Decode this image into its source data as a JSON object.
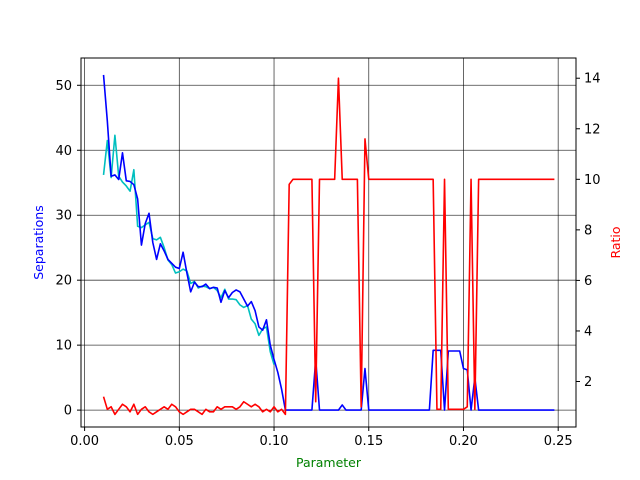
{
  "chart_data": {
    "type": "line",
    "title": "",
    "xlabel": "Parameter",
    "ylabel_left": "Separations",
    "ylabel_right": "Ratio",
    "colors": {
      "xlabel": "#008000",
      "ylabel_left": "#0000ff",
      "ylabel_right": "#ff0000",
      "grid": "#000000"
    },
    "grid": true,
    "xlim": [
      -0.0019,
      0.2594
    ],
    "ylim_left": [
      -2.6,
      54.2
    ],
    "ylim_right": [
      0.2,
      14.8
    ],
    "x_ticks": [
      0.0,
      0.05,
      0.1,
      0.15,
      0.2,
      0.25
    ],
    "x_tick_labels": [
      "0.00",
      "0.05",
      "0.10",
      "0.15",
      "0.20",
      "0.25"
    ],
    "y_left_ticks": [
      0,
      10,
      20,
      30,
      40,
      50
    ],
    "y_left_tick_labels": [
      "0",
      "10",
      "20",
      "30",
      "40",
      "50"
    ],
    "y_right_ticks": [
      2,
      4,
      6,
      8,
      10,
      12,
      14
    ],
    "y_right_tick_labels": [
      "2",
      "4",
      "6",
      "8",
      "10",
      "12",
      "14"
    ],
    "series": [
      {
        "axis": "left",
        "color": "#00bfbf",
        "x": [
          0.01,
          0.012,
          0.014,
          0.016,
          0.018,
          0.02,
          0.022,
          0.024,
          0.026,
          0.028,
          0.03,
          0.032,
          0.034,
          0.036,
          0.038,
          0.04,
          0.042,
          0.044,
          0.046,
          0.048,
          0.05,
          0.052,
          0.054,
          0.056,
          0.058,
          0.06,
          0.062,
          0.064,
          0.066,
          0.068,
          0.07,
          0.072,
          0.074,
          0.076,
          0.078,
          0.08,
          0.082,
          0.084,
          0.086,
          0.088,
          0.09,
          0.092,
          0.094,
          0.096,
          0.098,
          0.1
        ],
        "y": [
          36.2,
          41.5,
          35.8,
          42.3,
          36.0,
          35.1,
          34.5,
          33.7,
          37.0,
          28.3,
          28.1,
          28.5,
          28.9,
          26.4,
          26.2,
          26.6,
          25.0,
          23.1,
          22.4,
          21.1,
          21.3,
          21.7,
          21.4,
          19.5,
          19.8,
          18.8,
          19.1,
          19.0,
          18.7,
          18.9,
          18.4,
          17.3,
          18.6,
          17.1,
          17.1,
          17.0,
          16.2,
          15.8,
          16.1,
          14.0,
          13.3,
          11.5,
          12.5,
          12.8,
          9.0,
          7.0
        ]
      },
      {
        "axis": "left",
        "color": "#0000ff",
        "x": [
          0.01,
          0.012,
          0.014,
          0.016,
          0.018,
          0.02,
          0.022,
          0.024,
          0.026,
          0.028,
          0.03,
          0.032,
          0.034,
          0.036,
          0.038,
          0.04,
          0.042,
          0.044,
          0.046,
          0.048,
          0.05,
          0.052,
          0.054,
          0.056,
          0.058,
          0.06,
          0.062,
          0.064,
          0.066,
          0.068,
          0.07,
          0.072,
          0.074,
          0.076,
          0.078,
          0.08,
          0.082,
          0.084,
          0.086,
          0.088,
          0.09,
          0.092,
          0.094,
          0.096,
          0.098,
          0.1,
          0.102,
          0.104,
          0.106,
          0.108,
          0.11,
          0.112,
          0.114,
          0.116,
          0.118,
          0.12,
          0.122,
          0.124,
          0.126,
          0.128,
          0.13,
          0.132,
          0.134,
          0.136,
          0.138,
          0.14,
          0.142,
          0.144,
          0.146,
          0.148,
          0.15,
          0.152,
          0.154,
          0.156,
          0.158,
          0.16,
          0.162,
          0.164,
          0.166,
          0.168,
          0.17,
          0.172,
          0.174,
          0.176,
          0.178,
          0.18,
          0.182,
          0.184,
          0.186,
          0.188,
          0.19,
          0.192,
          0.194,
          0.196,
          0.198,
          0.2,
          0.202,
          0.204,
          0.206,
          0.208,
          0.21,
          0.212,
          0.214,
          0.216,
          0.218,
          0.22,
          0.222,
          0.224,
          0.226,
          0.228,
          0.23,
          0.232,
          0.234,
          0.236,
          0.238,
          0.24,
          0.242,
          0.244,
          0.246,
          0.248
        ],
        "y": [
          51.6,
          44.5,
          36.0,
          36.2,
          35.5,
          39.6,
          35.3,
          35.2,
          34.7,
          32.5,
          25.4,
          28.7,
          30.3,
          25.8,
          23.2,
          25.6,
          24.5,
          23.2,
          22.6,
          22.0,
          21.8,
          24.3,
          21.1,
          18.2,
          19.7,
          19.0,
          19.0,
          19.4,
          18.7,
          18.9,
          18.8,
          16.6,
          18.4,
          17.3,
          18.1,
          18.5,
          18.2,
          17.1,
          16.0,
          16.7,
          15.3,
          12.8,
          12.3,
          13.9,
          10.0,
          7.8,
          5.8,
          3.2,
          0.0,
          0.0,
          0.0,
          0.0,
          0.0,
          0.0,
          0.0,
          0.0,
          7.8,
          0.0,
          0.0,
          0.0,
          0.0,
          0.0,
          0.0,
          0.8,
          0.0,
          0.0,
          0.0,
          0.0,
          0.0,
          6.4,
          0.0,
          0.0,
          0.0,
          0.0,
          0.0,
          0.0,
          0.0,
          0.0,
          0.0,
          0.0,
          0.0,
          0.0,
          0.0,
          0.0,
          0.0,
          0.0,
          0.0,
          9.2,
          9.2,
          9.2,
          0.0,
          9.1,
          9.1,
          9.1,
          9.1,
          6.4,
          6.2,
          0.0,
          5.0,
          0.0,
          0.0,
          0.0,
          0.0,
          0.0,
          0.0,
          0.0,
          0.0,
          0.0,
          0.0,
          0.0,
          0.0,
          0.0,
          0.0,
          0.0,
          0.0,
          0.0,
          0.0,
          0.0,
          0.0,
          0.0
        ]
      },
      {
        "axis": "right",
        "color": "#ff0000",
        "x": [
          0.01,
          0.012,
          0.014,
          0.016,
          0.018,
          0.02,
          0.022,
          0.024,
          0.026,
          0.028,
          0.03,
          0.032,
          0.034,
          0.036,
          0.038,
          0.04,
          0.042,
          0.044,
          0.046,
          0.048,
          0.05,
          0.052,
          0.054,
          0.056,
          0.058,
          0.06,
          0.062,
          0.064,
          0.066,
          0.068,
          0.07,
          0.072,
          0.074,
          0.076,
          0.078,
          0.08,
          0.082,
          0.084,
          0.086,
          0.088,
          0.09,
          0.092,
          0.094,
          0.096,
          0.098,
          0.1,
          0.102,
          0.104,
          0.106,
          0.108,
          0.11,
          0.112,
          0.114,
          0.116,
          0.118,
          0.12,
          0.122,
          0.124,
          0.126,
          0.128,
          0.13,
          0.132,
          0.134,
          0.136,
          0.138,
          0.14,
          0.142,
          0.144,
          0.146,
          0.148,
          0.15,
          0.152,
          0.154,
          0.156,
          0.158,
          0.16,
          0.162,
          0.164,
          0.166,
          0.168,
          0.17,
          0.172,
          0.174,
          0.176,
          0.178,
          0.18,
          0.182,
          0.184,
          0.186,
          0.188,
          0.19,
          0.192,
          0.194,
          0.196,
          0.198,
          0.2,
          0.202,
          0.204,
          0.206,
          0.208,
          0.21,
          0.212,
          0.214,
          0.216,
          0.218,
          0.22,
          0.222,
          0.224,
          0.226,
          0.228,
          0.23,
          0.232,
          0.234,
          0.236,
          0.238,
          0.24,
          0.242,
          0.244,
          0.246,
          0.248
        ],
        "y": [
          1.4,
          0.9,
          1.0,
          0.7,
          0.9,
          1.1,
          1.0,
          0.8,
          1.1,
          0.7,
          0.9,
          1.0,
          0.8,
          0.7,
          0.8,
          0.9,
          1.0,
          0.9,
          1.1,
          1.0,
          0.8,
          0.7,
          0.8,
          0.9,
          0.9,
          0.8,
          0.7,
          0.9,
          0.8,
          0.8,
          1.0,
          0.9,
          1.0,
          1.0,
          1.0,
          0.9,
          1.0,
          1.2,
          1.1,
          1.0,
          1.1,
          1.0,
          0.8,
          0.9,
          0.8,
          1.0,
          0.8,
          0.9,
          0.7,
          9.8,
          10.0,
          10.0,
          10.0,
          10.0,
          10.0,
          10.0,
          1.2,
          10.0,
          10.0,
          10.0,
          10.0,
          10.0,
          14.0,
          10.0,
          10.0,
          10.0,
          10.0,
          10.0,
          1.0,
          11.6,
          10.0,
          10.0,
          10.0,
          10.0,
          10.0,
          10.0,
          10.0,
          10.0,
          10.0,
          10.0,
          10.0,
          10.0,
          10.0,
          10.0,
          10.0,
          10.0,
          10.0,
          10.0,
          0.9,
          0.9,
          10.0,
          0.9,
          0.9,
          0.9,
          0.9,
          0.9,
          1.0,
          10.0,
          0.9,
          10.0,
          10.0,
          10.0,
          10.0,
          10.0,
          10.0,
          10.0,
          10.0,
          10.0,
          10.0,
          10.0,
          10.0,
          10.0,
          10.0,
          10.0,
          10.0,
          10.0,
          10.0,
          10.0,
          10.0,
          10.0
        ]
      }
    ]
  }
}
